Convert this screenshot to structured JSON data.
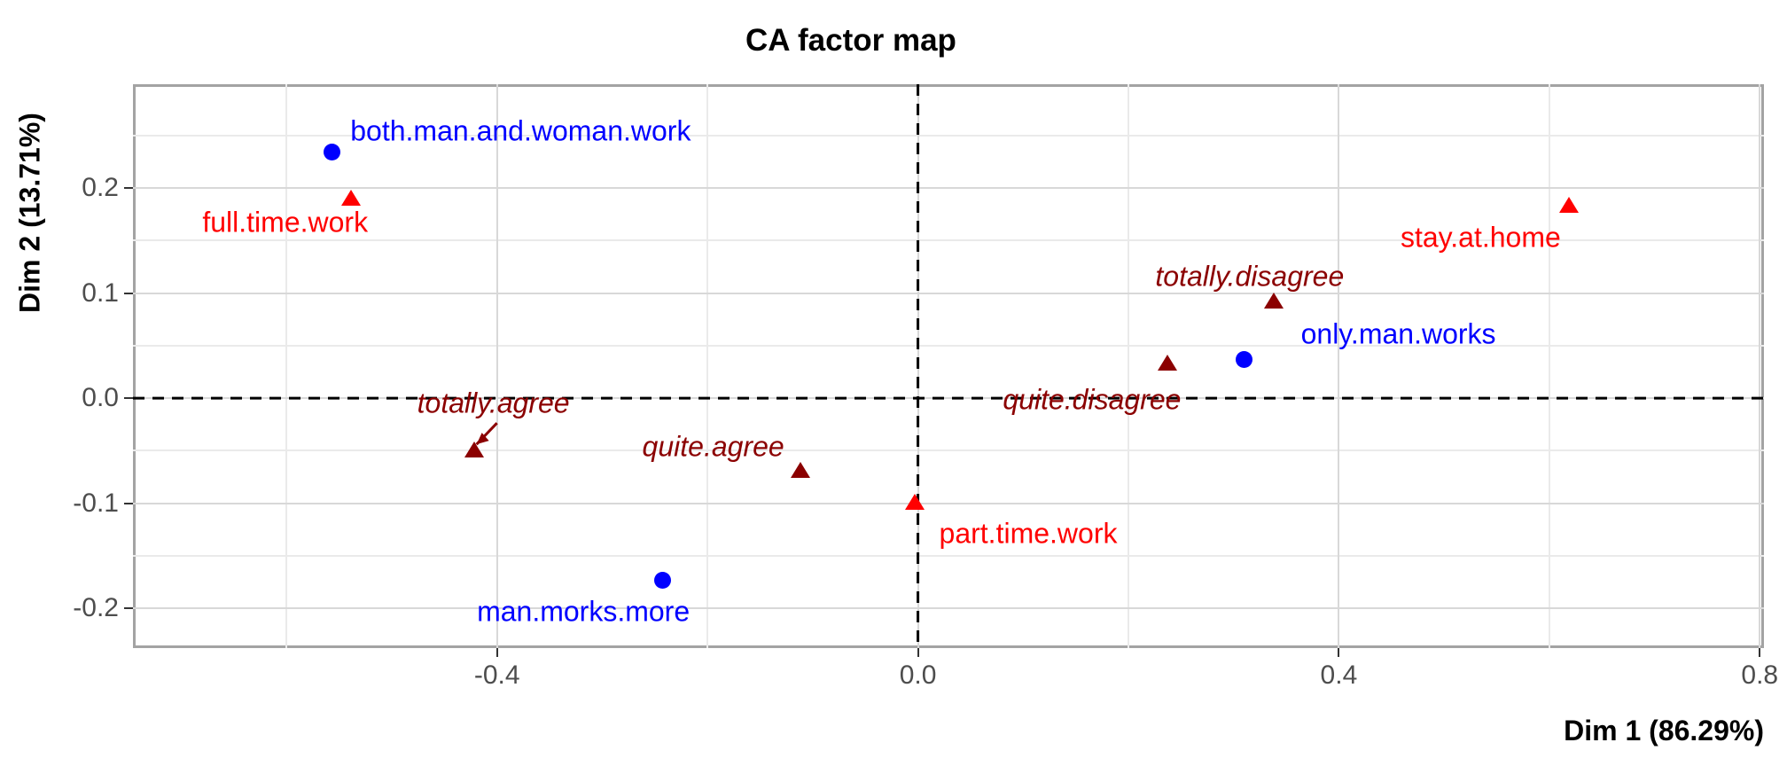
{
  "chart_data": {
    "type": "scatter",
    "title": "CA factor map",
    "xlabel": "Dim 1 (86.29%)",
    "ylabel": "Dim 2 (13.71%)",
    "xlim": [
      -0.746,
      0.804
    ],
    "ylim": [
      -0.238,
      0.299
    ],
    "grid": "on",
    "legend": "none",
    "series": [
      {
        "name": "rows",
        "marker": "circle",
        "color": "#0000ff",
        "italic": false,
        "points": [
          {
            "label": "both.man.and.woman.work",
            "x": -0.557,
            "y": 0.234,
            "label_dx": 213,
            "label_dy": -24
          },
          {
            "label": "man.morks.more",
            "x": -0.243,
            "y": -0.173,
            "label_dx": -89,
            "label_dy": 36
          },
          {
            "label": "only.man.works",
            "x": 0.31,
            "y": 0.037,
            "label_dx": 174,
            "label_dy": -28
          }
        ]
      },
      {
        "name": "columns",
        "marker": "triangle",
        "color": "#ff0000",
        "italic": false,
        "points": [
          {
            "label": "full.time.work",
            "x": -0.539,
            "y": 0.191,
            "label_dx": -74,
            "label_dy": 28
          },
          {
            "label": "part.time.work",
            "x": -0.003,
            "y": -0.099,
            "label_dx": 128,
            "label_dy": 36
          },
          {
            "label": "stay.at.home",
            "x": 0.619,
            "y": 0.184,
            "label_dx": -100,
            "label_dy": 37
          }
        ]
      },
      {
        "name": "supplementary-categories",
        "marker": "triangle",
        "color": "#8b0000",
        "italic": true,
        "points": [
          {
            "label": "totally.agree",
            "x": -0.422,
            "y": -0.049,
            "label_dx": 22,
            "label_dy": -52,
            "arrow": {
              "from_dx": 26,
              "from_dy": -30,
              "to_dx": 3,
              "to_dy": -6
            }
          },
          {
            "label": "quite.agree",
            "x": -0.112,
            "y": -0.068,
            "label_dx": -98,
            "label_dy": -26
          },
          {
            "label": "quite.disagree",
            "x": 0.237,
            "y": 0.034,
            "label_dx": -85,
            "label_dy": 42
          },
          {
            "label": "totally.disagree",
            "x": 0.338,
            "y": 0.093,
            "label_dx": -27,
            "label_dy": -27
          }
        ]
      }
    ]
  },
  "axes": {
    "x": {
      "ticks": [
        -0.4,
        0.0,
        0.4,
        0.8
      ],
      "tick_labels": [
        "-0.4",
        "0.0",
        "0.4",
        "0.8"
      ],
      "minor_gridlines": [
        -0.6,
        -0.2,
        0.2,
        0.6
      ]
    },
    "y": {
      "ticks": [
        0.2,
        0.1,
        0.0,
        -0.1,
        -0.2
      ],
      "tick_labels": [
        "0.2",
        "0.1",
        "0.0",
        "-0.1",
        "-0.2"
      ],
      "minor_gridlines": [
        0.25,
        0.15,
        0.05,
        -0.05,
        -0.15
      ]
    }
  },
  "reference_lines": {
    "vertical_x": 0.0,
    "horizontal_y": 0.0,
    "style": "dashed",
    "color": "#000000"
  },
  "colors": {
    "rows": "#0000ff",
    "columns": "#ff0000",
    "supplementary": "#8b0000",
    "grid_major": "#d8d8d8",
    "grid_minor": "#eaeaea",
    "panel_border": "#a3a3a3",
    "tick_text": "#4d4d4d"
  }
}
